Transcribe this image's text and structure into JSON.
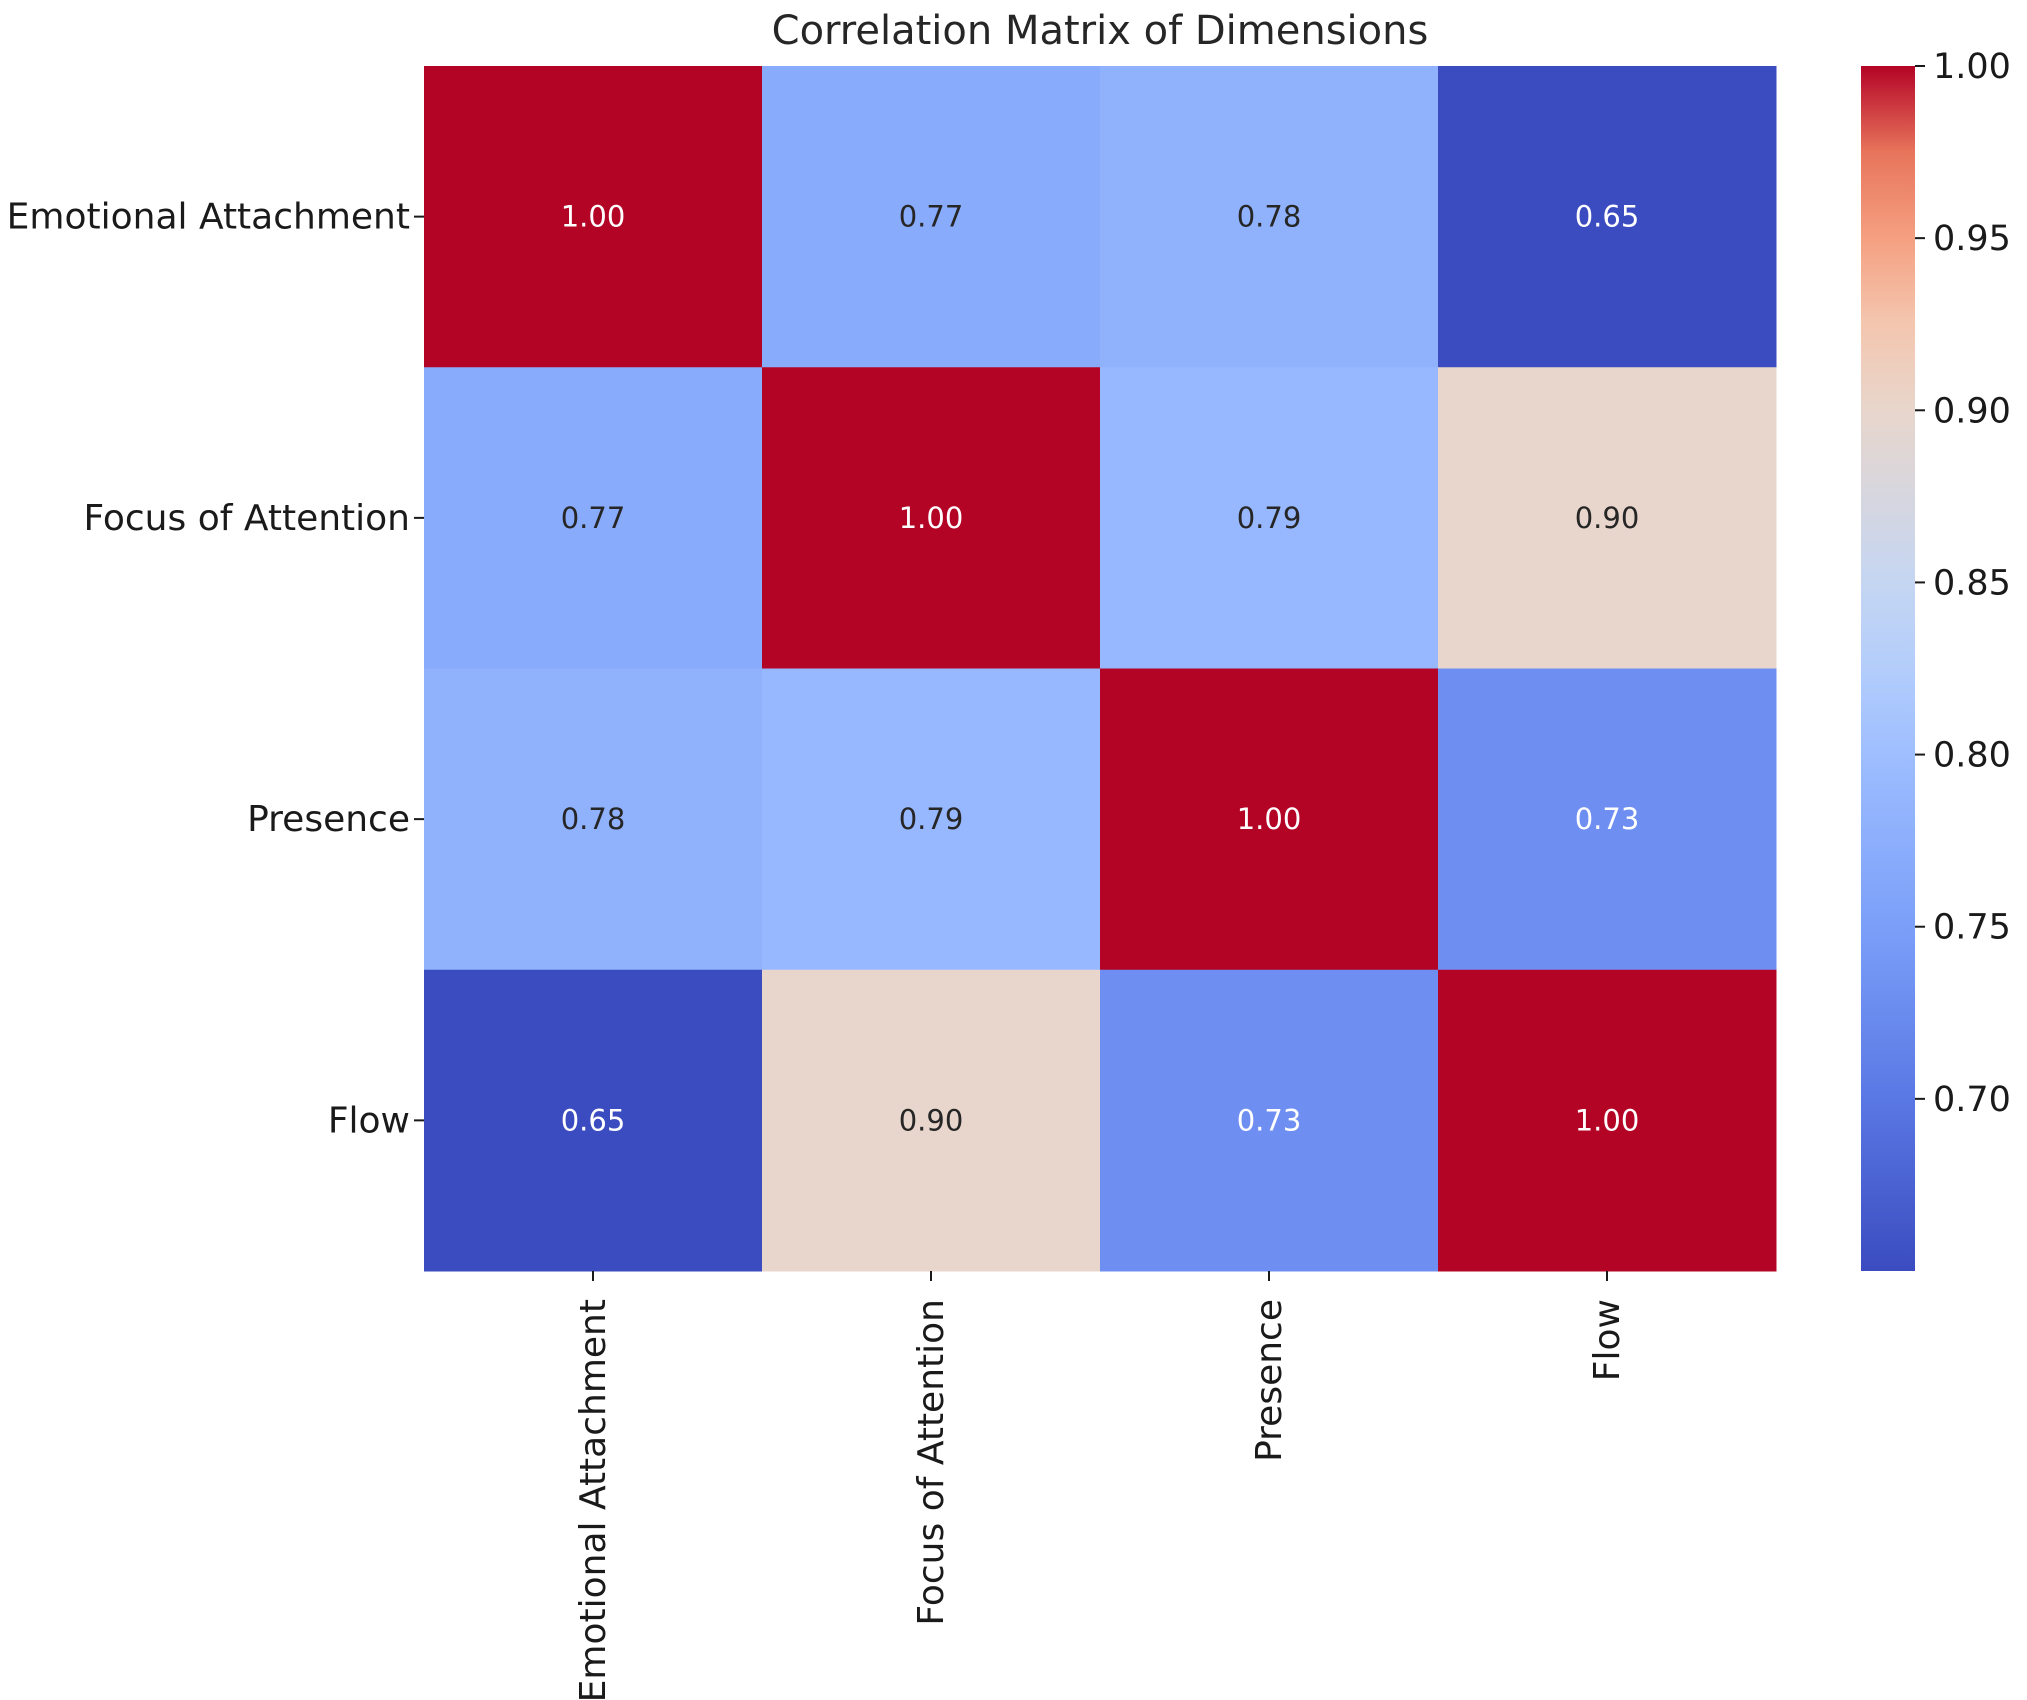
{
  "chart_data": {
    "type": "heatmap",
    "title": "Correlation Matrix of Dimensions",
    "row_labels": [
      "Emotional Attachment",
      "Focus of Attention",
      "Presence",
      "Flow"
    ],
    "col_labels": [
      "Emotional Attachment",
      "Focus of Attention",
      "Presence",
      "Flow"
    ],
    "values": [
      [
        1.0,
        0.77,
        0.78,
        0.65
      ],
      [
        0.77,
        1.0,
        0.79,
        0.9
      ],
      [
        0.78,
        0.79,
        1.0,
        0.73
      ],
      [
        0.65,
        0.9,
        0.73,
        1.0
      ]
    ],
    "cell_labels": [
      [
        "1.00",
        "0.77",
        "0.78",
        "0.65"
      ],
      [
        "0.77",
        "1.00",
        "0.79",
        "0.90"
      ],
      [
        "0.78",
        "0.79",
        "1.00",
        "0.73"
      ],
      [
        "0.65",
        "0.90",
        "0.73",
        "1.00"
      ]
    ],
    "colormap": "coolwarm",
    "vmin": 0.65,
    "vmax": 1.0,
    "colorbar": {
      "ticks": [
        0.7,
        0.75,
        0.8,
        0.85,
        0.9,
        0.95,
        1.0
      ],
      "tick_labels": [
        "0.70",
        "0.75",
        "0.80",
        "0.85",
        "0.90",
        "0.95",
        "1.00"
      ],
      "placement": "right"
    }
  }
}
